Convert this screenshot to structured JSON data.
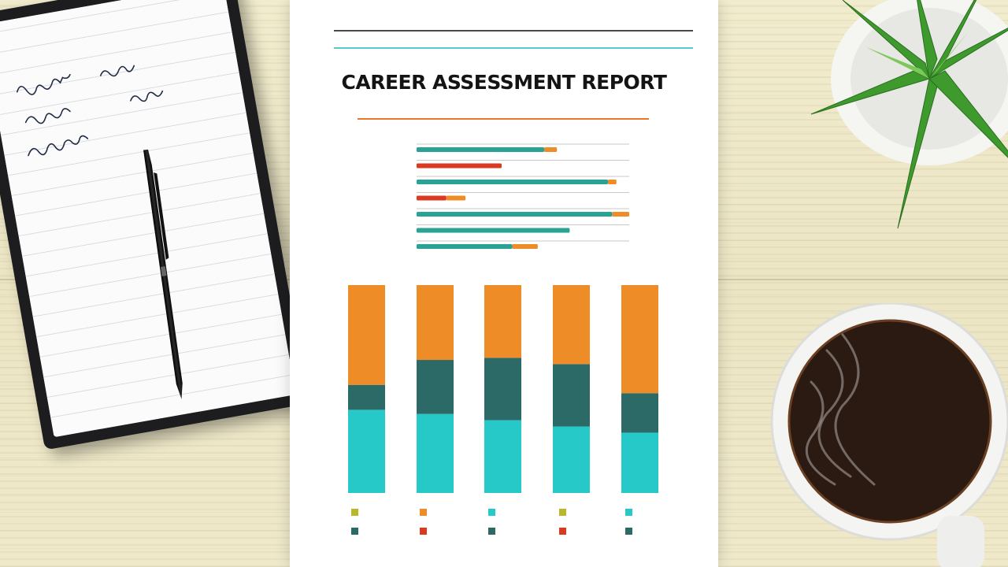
{
  "report": {
    "title": "CAREER ASSESSMENT REPORT"
  },
  "colors": {
    "teal": "#2aa396",
    "cyan": "#26c9c7",
    "dark_teal": "#2c6a67",
    "orange": "#ee8c27",
    "red": "#d83b22",
    "olive": "#b7b82a"
  },
  "chart_data": [
    {
      "type": "bar",
      "orientation": "horizontal",
      "xlim": [
        0,
        100
      ],
      "categories": [
        "",
        "",
        "",
        "",
        "",
        "",
        ""
      ],
      "series": [
        {
          "values": [
            60,
            0,
            90,
            0,
            92,
            72,
            45
          ]
        },
        {
          "values": [
            0,
            40,
            0,
            14,
            0,
            0,
            0
          ]
        },
        {
          "values": [
            6,
            0,
            4,
            9,
            8,
            0,
            12
          ]
        }
      ]
    },
    {
      "type": "bar",
      "stacked": true,
      "orientation": "vertical",
      "ylim": [
        0,
        100
      ],
      "categories": [
        "",
        "",
        "",
        "",
        ""
      ],
      "series": [
        {
          "values": [
            40,
            38,
            35,
            32,
            29
          ]
        },
        {
          "values": [
            12,
            26,
            30,
            30,
            19
          ]
        },
        {
          "values": [
            48,
            36,
            35,
            38,
            52
          ]
        }
      ]
    }
  ],
  "icons": {
    "pen": "pen-icon",
    "notebook": "notebook-icon",
    "plant": "succulent-plant-icon",
    "mug": "coffee-mug-icon"
  }
}
